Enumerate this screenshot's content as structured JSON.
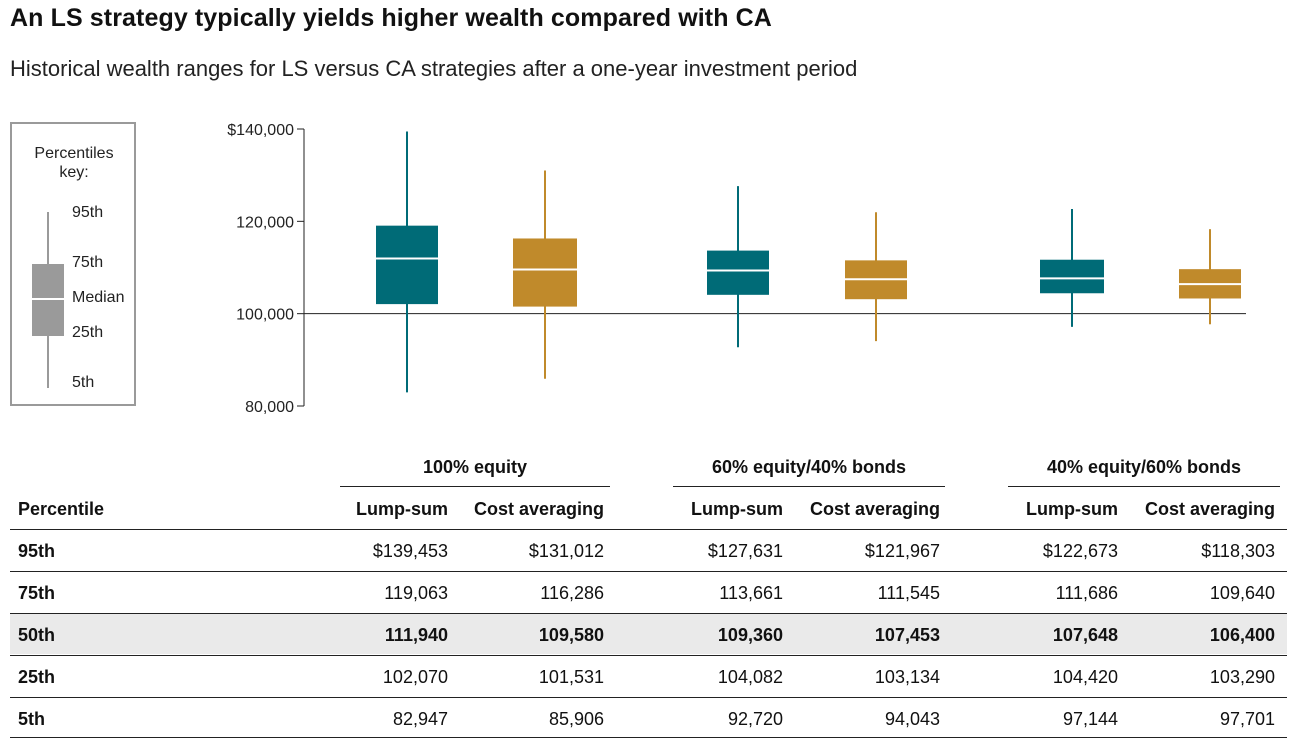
{
  "title": "An LS strategy typically yields higher wealth compared with CA",
  "subtitle": "Historical wealth ranges for LS versus CA strategies after a one-year investment period",
  "legend": {
    "title_line1": "Percentiles",
    "title_line2": "key:",
    "p95": "95th",
    "p75": "75th",
    "median": "Median",
    "p25": "25th",
    "p5": "5th"
  },
  "colors": {
    "lump_sum": "#006b77",
    "cost_averaging": "#c08a2b",
    "key": "#9a9a9a"
  },
  "chart_data": {
    "type": "box",
    "ylim": [
      80000,
      140000
    ],
    "yticks": [
      {
        "value": 140000,
        "label": "$140,000"
      },
      {
        "value": 120000,
        "label": "120,000"
      },
      {
        "value": 100000,
        "label": "100,000"
      },
      {
        "value": 80000,
        "label": "80,000"
      }
    ],
    "reference_line": 100000,
    "groups": [
      {
        "name": "100% equity",
        "series": [
          {
            "name": "Lump-sum",
            "p5": 82947,
            "p25": 102070,
            "p50": 111940,
            "p75": 119063,
            "p95": 139453
          },
          {
            "name": "Cost averaging",
            "p5": 85906,
            "p25": 101531,
            "p50": 109580,
            "p75": 116286,
            "p95": 131012
          }
        ]
      },
      {
        "name": "60% equity/40% bonds",
        "series": [
          {
            "name": "Lump-sum",
            "p5": 92720,
            "p25": 104082,
            "p50": 109360,
            "p75": 113661,
            "p95": 127631
          },
          {
            "name": "Cost averaging",
            "p5": 94043,
            "p25": 103134,
            "p50": 107453,
            "p75": 111545,
            "p95": 121967
          }
        ]
      },
      {
        "name": "40% equity/60% bonds",
        "series": [
          {
            "name": "Lump-sum",
            "p5": 97144,
            "p25": 104420,
            "p50": 107648,
            "p75": 111686,
            "p95": 122673
          },
          {
            "name": "Cost averaging",
            "p5": 97701,
            "p25": 103290,
            "p50": 106400,
            "p75": 109640,
            "p95": 118303
          }
        ]
      }
    ]
  },
  "table": {
    "groups": [
      "100% equity",
      "60% equity/40% bonds",
      "40% equity/60% bonds"
    ],
    "columns": [
      "Percentile",
      "Lump-sum",
      "Cost averaging",
      "Lump-sum",
      "Cost averaging",
      "Lump-sum",
      "Cost averaging"
    ],
    "rows": [
      {
        "label": "95th",
        "values": [
          "$139,453",
          "$131,012",
          "$127,631",
          "$121,967",
          "$122,673",
          "$118,303"
        ]
      },
      {
        "label": "75th",
        "values": [
          "119,063",
          "116,286",
          "113,661",
          "111,545",
          "111,686",
          "109,640"
        ]
      },
      {
        "label": "50th",
        "values": [
          "111,940",
          "109,580",
          "109,360",
          "107,453",
          "107,648",
          "106,400"
        ]
      },
      {
        "label": "25th",
        "values": [
          "102,070",
          "101,531",
          "104,082",
          "103,134",
          "104,420",
          "103,290"
        ]
      },
      {
        "label": "5th",
        "values": [
          "82,947",
          "85,906",
          "92,720",
          "94,043",
          "97,144",
          "97,701"
        ]
      }
    ]
  }
}
